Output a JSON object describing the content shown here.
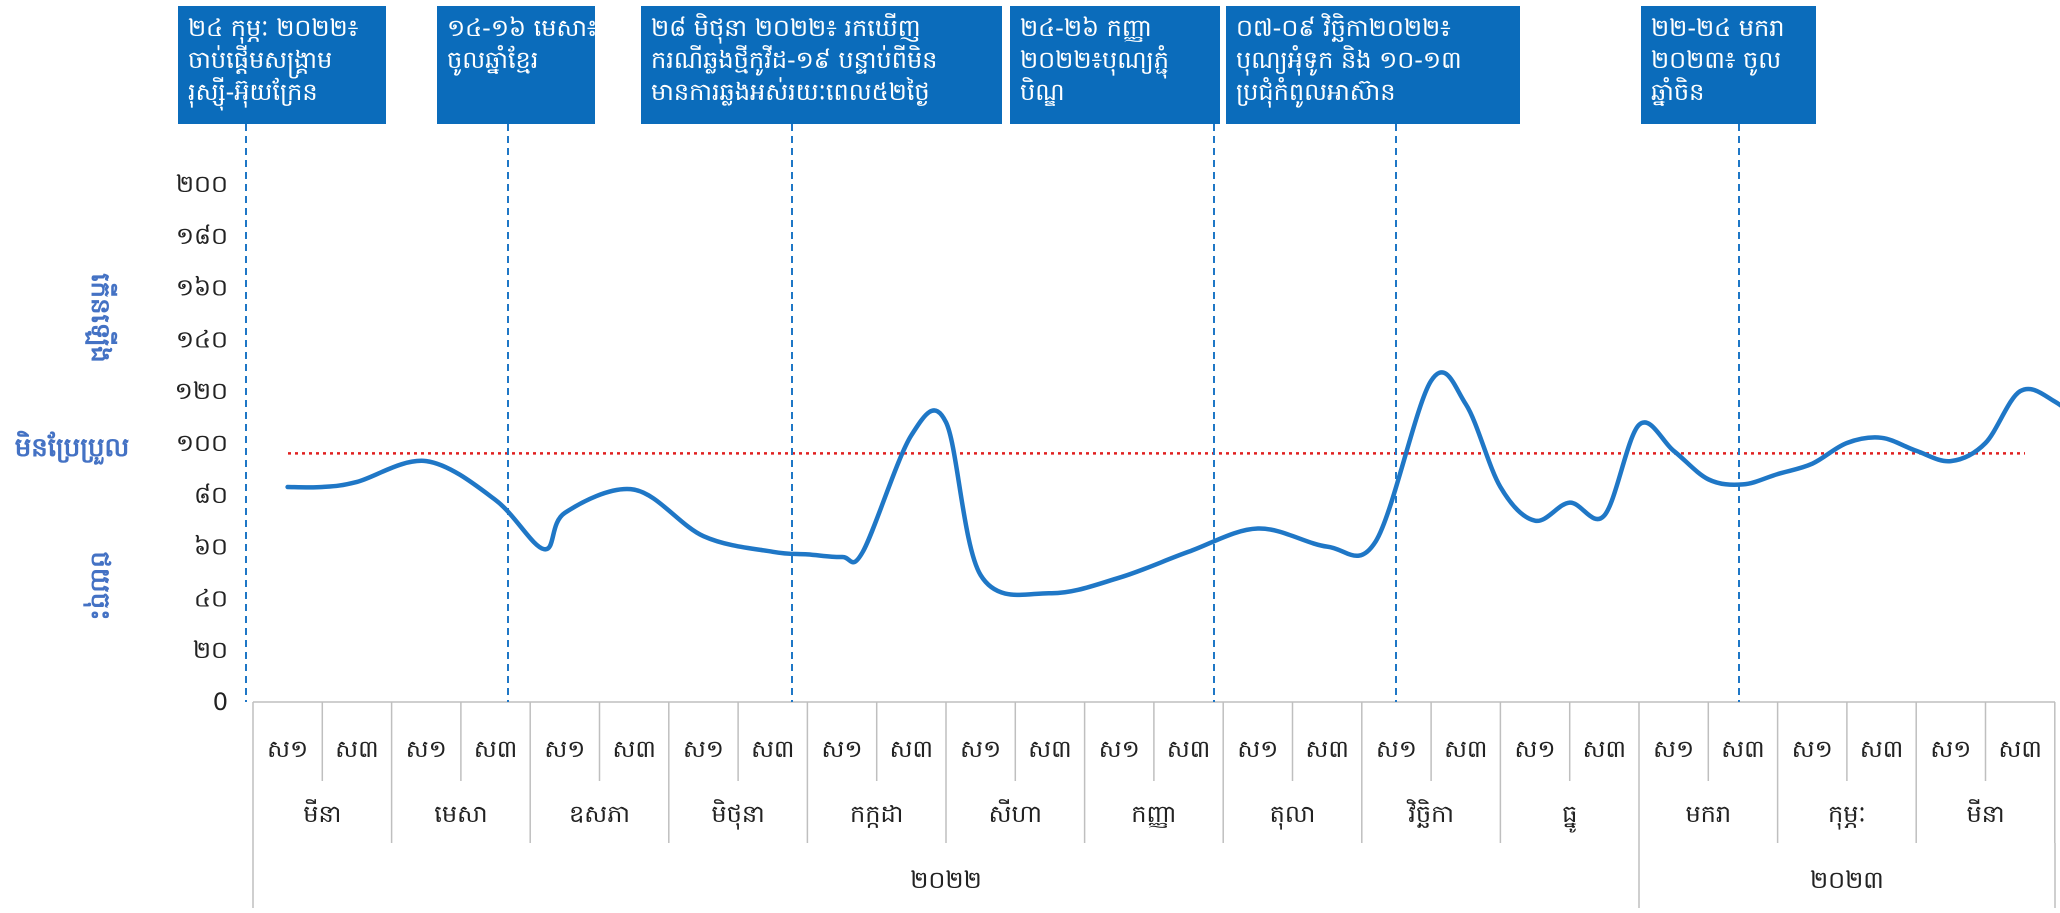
{
  "chart_data": {
    "type": "line",
    "title": "",
    "ylim": [
      0,
      200
    ],
    "y_ticks": [
      "0",
      "២០",
      "៤០",
      "៦០",
      "៨០",
      "១០០",
      "១២០",
      "១៤០",
      "១៦០",
      "១៨០",
      "២០០"
    ],
    "y_label_parts": {
      "upper": "កើនឡើង",
      "middle": "មិនប្រែប្រួល",
      "lower": "ថយចុះ"
    },
    "categories_level1": [
      "ស១",
      "ស៣",
      "ស១",
      "ស៣",
      "ស១",
      "ស៣",
      "ស១",
      "ស៣",
      "ស១",
      "ស៣",
      "ស១",
      "ស៣",
      "ស១",
      "ស៣",
      "ស១",
      "ស៣",
      "ស១",
      "ស៣",
      "ស១",
      "ស៣",
      "ស១",
      "ស៣",
      "ស១",
      "ស៣",
      "ស១",
      "ស៣",
      "ស១",
      "ស៣"
    ],
    "categories_level2": [
      "មីនា",
      "មេសា",
      "ឧសភា",
      "មិថុនា",
      "កក្កដា",
      "សីហា",
      "កញ្ញា",
      "តុលា",
      "វិច្ឆិកា",
      "ធ្នូ",
      "មករា",
      "កុម្ភៈ",
      "មីនា"
    ],
    "categories_level3": [
      "២០២២",
      "២០២៣"
    ],
    "series": [
      {
        "values": [
          83,
          83,
          85,
          93,
          78,
          59,
          73,
          82,
          64,
          58,
          57,
          56,
          58,
          103,
          108,
          49,
          42,
          48,
          58,
          67,
          60,
          62,
          124,
          115,
          83,
          70,
          77,
          72,
          107,
          97,
          86,
          84,
          88,
          92,
          100,
          102,
          97,
          93,
          100,
          120,
          116,
          104,
          82,
          60,
          66,
          85,
          86,
          82
        ],
        "x": [
          0,
          0.5,
          1,
          2,
          3,
          3.7,
          4,
          5,
          6,
          7,
          7.5,
          8,
          8.3,
          9,
          9.5,
          10,
          11,
          12,
          13,
          14,
          15,
          15.7,
          16.5,
          17,
          17.5,
          18,
          18.5,
          19,
          19.5,
          20,
          20.5,
          21,
          21.5,
          22,
          22.5,
          23,
          23.5,
          24,
          24.5,
          25,
          25.5,
          26,
          26.5,
          27,
          27.5,
          28,
          28.5,
          29
        ]
      }
    ],
    "reference_line": 96,
    "annotations": [
      "២៤ កុម្ភៈ ២០២២៖ ចាប់ផ្តើមសង្គ្រាម រុស្ស៊ី-អ៊ុយក្រែន",
      "១៤-១៦ មេសា៖ ចូលឆ្នាំខ្មែរ",
      "២៨ មិថុនា ២០២២៖ រកឃើញករណីឆ្លងថ្មីកូវីដ-១៩ បន្ទាប់ពីមិនមានការឆ្លងអស់រយៈពេល៥២ថ្ងៃ",
      "២៤-២៦ កញ្ញា ២០២២៖បុណ្យភ្ជុំបិណ្ឌ",
      "០៧-០៩ វិច្ឆិកា២០២២៖ បុណ្យអុំទូក និង ១០-១៣ ប្រជុំកំពូលអាស៊ាន",
      "២២-២៤ មករា ២០២៣៖ ចូលឆ្នាំចិន"
    ],
    "annotation_lines": [
      [
        "២៤ កុម្ភៈ ២០២២៖",
        "ចាប់ផ្តើមសង្គ្រាម",
        "រុស្ស៊ី-អ៊ុយក្រែន"
      ],
      [
        "១៤-១៦ មេសា៖",
        "ចូលឆ្នាំខ្មែរ"
      ],
      [
        "២៨ មិថុនា ២០២២៖ រកឃើញ",
        "ករណីឆ្លងថ្មីកូវីដ-១៩ បន្ទាប់ពីមិន",
        "មានការឆ្លងអស់រយៈពេល៥២ថ្ងៃ"
      ],
      [
        "២៤-២៦ កញ្ញា",
        "២០២២៖បុណ្យភ្ជុំ",
        "បិណ្ឌ"
      ],
      [
        "០៧-០៩ វិច្ឆិកា២០២២៖",
        "បុណ្យអុំទូក និង ១០-១៣",
        "ប្រជុំកំពូលអាស៊ាន"
      ],
      [
        "២២-២៤ មករា",
        "២០២៣៖ ចូល",
        "ឆ្នាំចិន"
      ]
    ],
    "colors": {
      "line": "#1f77c6",
      "reference": "#e02020",
      "annotation_box": "#0b6cbb",
      "ylabel": "#4472c4"
    }
  }
}
